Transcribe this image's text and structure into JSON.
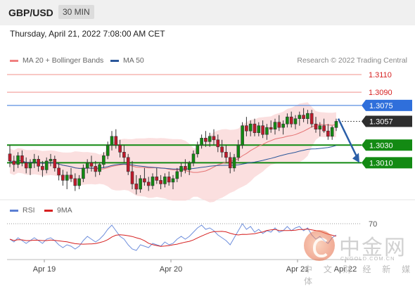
{
  "header": {
    "symbol": "GBP/USD",
    "timeframe": "30 MIN"
  },
  "datetime": "Thursday, April 21, 2022 7:08:00 AM CET",
  "legend": [
    {
      "label": "MA 20 + Bollinger Bands",
      "color": "#f08080"
    },
    {
      "label": "MA 50",
      "color": "#2b579a"
    }
  ],
  "credit": "Research © 2022 Trading Central",
  "rsi_legend": [
    {
      "label": "RSI",
      "color": "#5b7fd3"
    },
    {
      "label": "9MA",
      "color": "#d62020"
    }
  ],
  "watermark": {
    "cn": "中金网",
    "site": "CNGOLD.COM.CN",
    "sub": "中 文 财 经 新 媒 体"
  },
  "chart_data": [
    {
      "type": "candlestick",
      "title": "GBP/USD",
      "timeframe": "30 MIN",
      "x_ticks": [
        "Apr 19",
        "Apr 20",
        "Apr 21",
        "Apr 22"
      ],
      "price_labels": [
        {
          "value": 1.311,
          "label": "1.3110",
          "role": "resistance",
          "color": "#d9534f"
        },
        {
          "value": 1.309,
          "label": "1.3090",
          "role": "resistance",
          "color": "#d9534f"
        },
        {
          "value": 1.3075,
          "label": "1.3075",
          "role": "pivot",
          "color": "#3a78d8"
        },
        {
          "value": 1.3057,
          "label": "1.3057",
          "role": "last-price",
          "color": "#333333"
        },
        {
          "value": 1.303,
          "label": "1.3030",
          "role": "support",
          "color": "#138a13"
        },
        {
          "value": 1.301,
          "label": "1.3010",
          "role": "support",
          "color": "#138a13"
        }
      ],
      "forecast": {
        "from": 1.306,
        "to": 1.301,
        "direction": "down",
        "color": "#2b5fa8"
      },
      "ohlc": [
        [
          1.302,
          1.303,
          1.3005,
          1.3012
        ],
        [
          1.3012,
          1.3018,
          1.3,
          1.3008
        ],
        [
          1.3008,
          1.3022,
          1.3004,
          1.3018
        ],
        [
          1.3018,
          1.3024,
          1.3006,
          1.301
        ],
        [
          1.301,
          1.3016,
          1.2998,
          1.3004
        ],
        [
          1.3004,
          1.3014,
          1.2996,
          1.301
        ],
        [
          1.301,
          1.302,
          1.3004,
          1.3014
        ],
        [
          1.3014,
          1.3018,
          1.3,
          1.3006
        ],
        [
          1.3006,
          1.3012,
          1.2994,
          1.3002
        ],
        [
          1.3002,
          1.3016,
          1.2998,
          1.3012
        ],
        [
          1.3012,
          1.302,
          1.3006,
          1.3014
        ],
        [
          1.3014,
          1.3018,
          1.3,
          1.3004
        ],
        [
          1.3004,
          1.301,
          1.299,
          1.2996
        ],
        [
          1.2996,
          1.3002,
          1.2984,
          1.299
        ],
        [
          1.299,
          1.3,
          1.298,
          1.2996
        ],
        [
          1.2996,
          1.3004,
          1.2988,
          1.2992
        ],
        [
          1.2992,
          1.2998,
          1.2978,
          1.2984
        ],
        [
          1.2984,
          1.2996,
          1.298,
          1.2992
        ],
        [
          1.2992,
          1.3008,
          1.2988,
          1.3004
        ],
        [
          1.3004,
          1.3014,
          1.2998,
          1.301
        ],
        [
          1.301,
          1.3018,
          1.3,
          1.3006
        ],
        [
          1.3006,
          1.3012,
          1.2994,
          1.3
        ],
        [
          1.3,
          1.301,
          1.2996,
          1.3008
        ],
        [
          1.3008,
          1.3022,
          1.3004,
          1.3018
        ],
        [
          1.3018,
          1.3034,
          1.3014,
          1.303
        ],
        [
          1.303,
          1.3046,
          1.3024,
          1.304
        ],
        [
          1.304,
          1.3048,
          1.3026,
          1.303
        ],
        [
          1.303,
          1.3036,
          1.3016,
          1.3022
        ],
        [
          1.3022,
          1.303,
          1.301,
          1.3016
        ],
        [
          1.3016,
          1.302,
          1.2996,
          1.3
        ],
        [
          1.3,
          1.3012,
          1.298,
          1.2986
        ],
        [
          1.2986,
          1.2996,
          1.2974,
          1.298
        ],
        [
          1.298,
          1.2996,
          1.2976,
          1.2992
        ],
        [
          1.2992,
          1.3004,
          1.2984,
          1.2988
        ],
        [
          1.2988,
          1.2994,
          1.2978,
          1.2984
        ],
        [
          1.2984,
          1.2998,
          1.298,
          1.2994
        ],
        [
          1.2994,
          1.3004,
          1.2986,
          1.299
        ],
        [
          1.299,
          1.2996,
          1.298,
          1.2986
        ],
        [
          1.2986,
          1.2998,
          1.2982,
          1.2994
        ],
        [
          1.2994,
          1.3,
          1.2984,
          1.2988
        ],
        [
          1.2988,
          1.2996,
          1.298,
          1.2992
        ],
        [
          1.2992,
          1.3004,
          1.2988,
          1.3
        ],
        [
          1.3,
          1.301,
          1.2994,
          1.3006
        ],
        [
          1.3006,
          1.3014,
          1.2998,
          1.3002
        ],
        [
          1.3002,
          1.3012,
          1.2996,
          1.301
        ],
        [
          1.301,
          1.3024,
          1.3006,
          1.302
        ],
        [
          1.302,
          1.3034,
          1.3016,
          1.303
        ],
        [
          1.303,
          1.3042,
          1.3026,
          1.3038
        ],
        [
          1.3038,
          1.3046,
          1.3028,
          1.3034
        ],
        [
          1.3034,
          1.3044,
          1.3028,
          1.304
        ],
        [
          1.304,
          1.3048,
          1.303,
          1.3036
        ],
        [
          1.3036,
          1.3042,
          1.3022,
          1.3028
        ],
        [
          1.3028,
          1.3036,
          1.3016,
          1.3022
        ],
        [
          1.3022,
          1.303,
          1.301,
          1.3016
        ],
        [
          1.3016,
          1.3022,
          1.2998,
          1.3004
        ],
        [
          1.3004,
          1.302,
          1.3,
          1.3016
        ],
        [
          1.3016,
          1.3036,
          1.3012,
          1.303
        ],
        [
          1.303,
          1.3056,
          1.3026,
          1.3052
        ],
        [
          1.3052,
          1.3062,
          1.304,
          1.3046
        ],
        [
          1.3046,
          1.3058,
          1.304,
          1.3054
        ],
        [
          1.3054,
          1.306,
          1.304,
          1.3044
        ],
        [
          1.3044,
          1.3056,
          1.304,
          1.3052
        ],
        [
          1.3052,
          1.3058,
          1.3038,
          1.3042
        ],
        [
          1.3042,
          1.3054,
          1.3036,
          1.305
        ],
        [
          1.305,
          1.3058,
          1.3044,
          1.3048
        ],
        [
          1.3048,
          1.306,
          1.3042,
          1.3056
        ],
        [
          1.3056,
          1.3064,
          1.3046,
          1.305
        ],
        [
          1.305,
          1.3058,
          1.3042,
          1.3054
        ],
        [
          1.3054,
          1.3066,
          1.305,
          1.3062
        ],
        [
          1.3062,
          1.3068,
          1.305,
          1.3054
        ],
        [
          1.3054,
          1.3064,
          1.3048,
          1.306
        ],
        [
          1.306,
          1.3068,
          1.3052,
          1.3064
        ],
        [
          1.3064,
          1.3072,
          1.3056,
          1.306
        ],
        [
          1.306,
          1.307,
          1.3054,
          1.3066
        ],
        [
          1.3066,
          1.307,
          1.305,
          1.3054
        ],
        [
          1.3054,
          1.3062,
          1.3044,
          1.3048
        ],
        [
          1.3048,
          1.3056,
          1.304,
          1.3052
        ],
        [
          1.3052,
          1.306,
          1.3044,
          1.3046
        ],
        [
          1.3046,
          1.3054,
          1.3036,
          1.304
        ],
        [
          1.304,
          1.3052,
          1.3036,
          1.305
        ],
        [
          1.305,
          1.306,
          1.3046,
          1.3057
        ]
      ],
      "rsi": [
        48,
        44,
        50,
        46,
        42,
        46,
        50,
        46,
        42,
        48,
        50,
        46,
        40,
        36,
        40,
        38,
        34,
        38,
        46,
        52,
        48,
        44,
        48,
        54,
        62,
        68,
        60,
        52,
        48,
        40,
        34,
        32,
        40,
        38,
        36,
        42,
        40,
        38,
        44,
        40,
        42,
        48,
        52,
        48,
        52,
        58,
        64,
        68,
        62,
        64,
        60,
        54,
        50,
        46,
        40,
        50,
        60,
        70,
        62,
        66,
        58,
        62,
        56,
        60,
        58,
        64,
        58,
        60,
        66,
        60,
        64,
        66,
        60,
        64,
        54,
        48,
        52,
        46,
        42,
        50,
        54
      ],
      "rsi_levels": [
        {
          "value": 70,
          "label": "70"
        }
      ],
      "rsi_range": [
        20,
        80
      ]
    }
  ]
}
